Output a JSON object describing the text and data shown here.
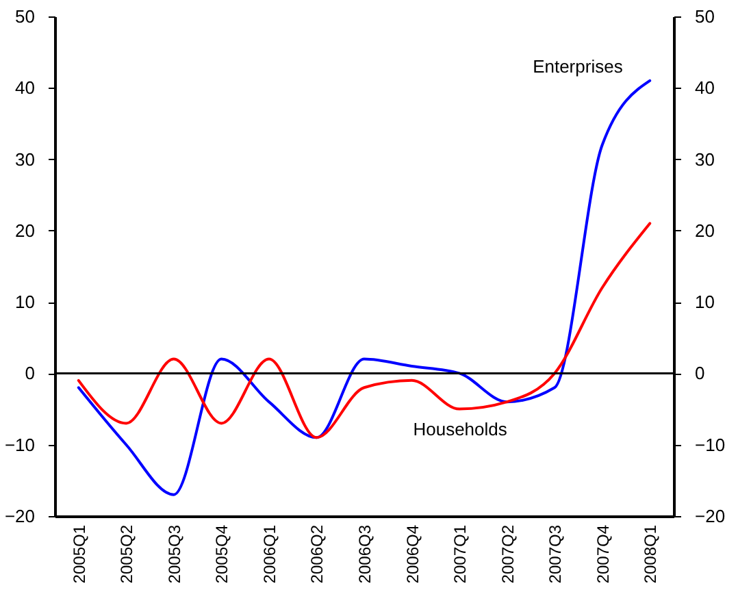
{
  "chart_data": {
    "type": "line",
    "categories": [
      "2005Q1",
      "2005Q2",
      "2005Q3",
      "2005Q4",
      "2006Q1",
      "2006Q2",
      "2006Q3",
      "2006Q4",
      "2007Q1",
      "2007Q2",
      "2007Q3",
      "2007Q4",
      "2008Q1"
    ],
    "series": [
      {
        "name": "Enterprises",
        "color": "#0000ff",
        "values": [
          -2,
          -10,
          -17,
          2,
          -4,
          -9,
          2,
          1,
          0,
          -4,
          -2,
          32,
          41
        ]
      },
      {
        "name": "Households",
        "color": "#ff0000",
        "values": [
          -1,
          -7,
          2,
          -7,
          2,
          -9,
          -2,
          -1,
          -5,
          -4,
          0,
          12,
          21
        ]
      }
    ],
    "ylim": [
      -20,
      50
    ],
    "yticks": [
      -20,
      -10,
      0,
      10,
      20,
      30,
      40,
      50
    ],
    "y2lim": [
      -20,
      50
    ],
    "y2ticks": [
      -20,
      -10,
      0,
      10,
      20,
      30,
      40,
      50
    ],
    "ref_lines": [
      {
        "axis": "y",
        "value": 0,
        "color": "#000000"
      }
    ],
    "grid": false,
    "marker": "none",
    "line_style": "solid"
  }
}
